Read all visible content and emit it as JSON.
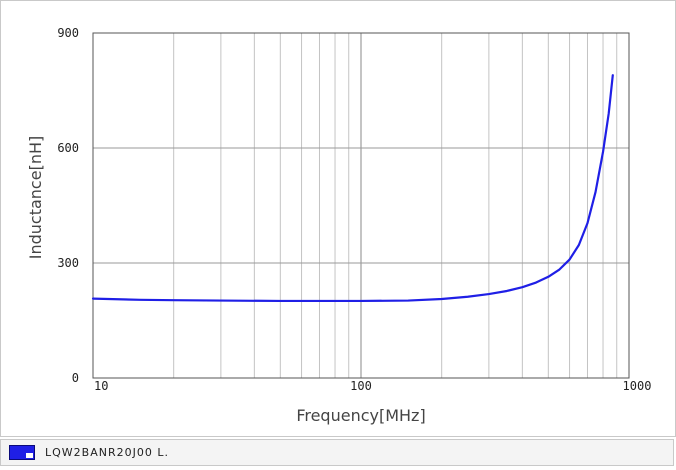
{
  "chart_data": {
    "type": "line",
    "title": "",
    "xlabel": "Frequency[MHz]",
    "ylabel": "Inductance[nH]",
    "x_scale": "log",
    "xlim": [
      10,
      1000
    ],
    "ylim": [
      0,
      900
    ],
    "x_ticks": [
      "10",
      "100",
      "1000"
    ],
    "y_ticks": [
      "0",
      "300",
      "600",
      "900"
    ],
    "grid": true,
    "legend_position": "bottom",
    "series": [
      {
        "name": "LQW2BANR20J00 L.",
        "color": "#1f1fe6",
        "x": [
          10,
          15,
          20,
          30,
          50,
          70,
          100,
          150,
          200,
          250,
          300,
          350,
          400,
          450,
          500,
          550,
          600,
          650,
          700,
          750,
          800,
          840,
          870
        ],
        "y": [
          207,
          204,
          203,
          202,
          201,
          201,
          201,
          202,
          206,
          212,
          219,
          227,
          237,
          249,
          264,
          283,
          309,
          347,
          404,
          485,
          590,
          690,
          790
        ]
      }
    ]
  }
}
